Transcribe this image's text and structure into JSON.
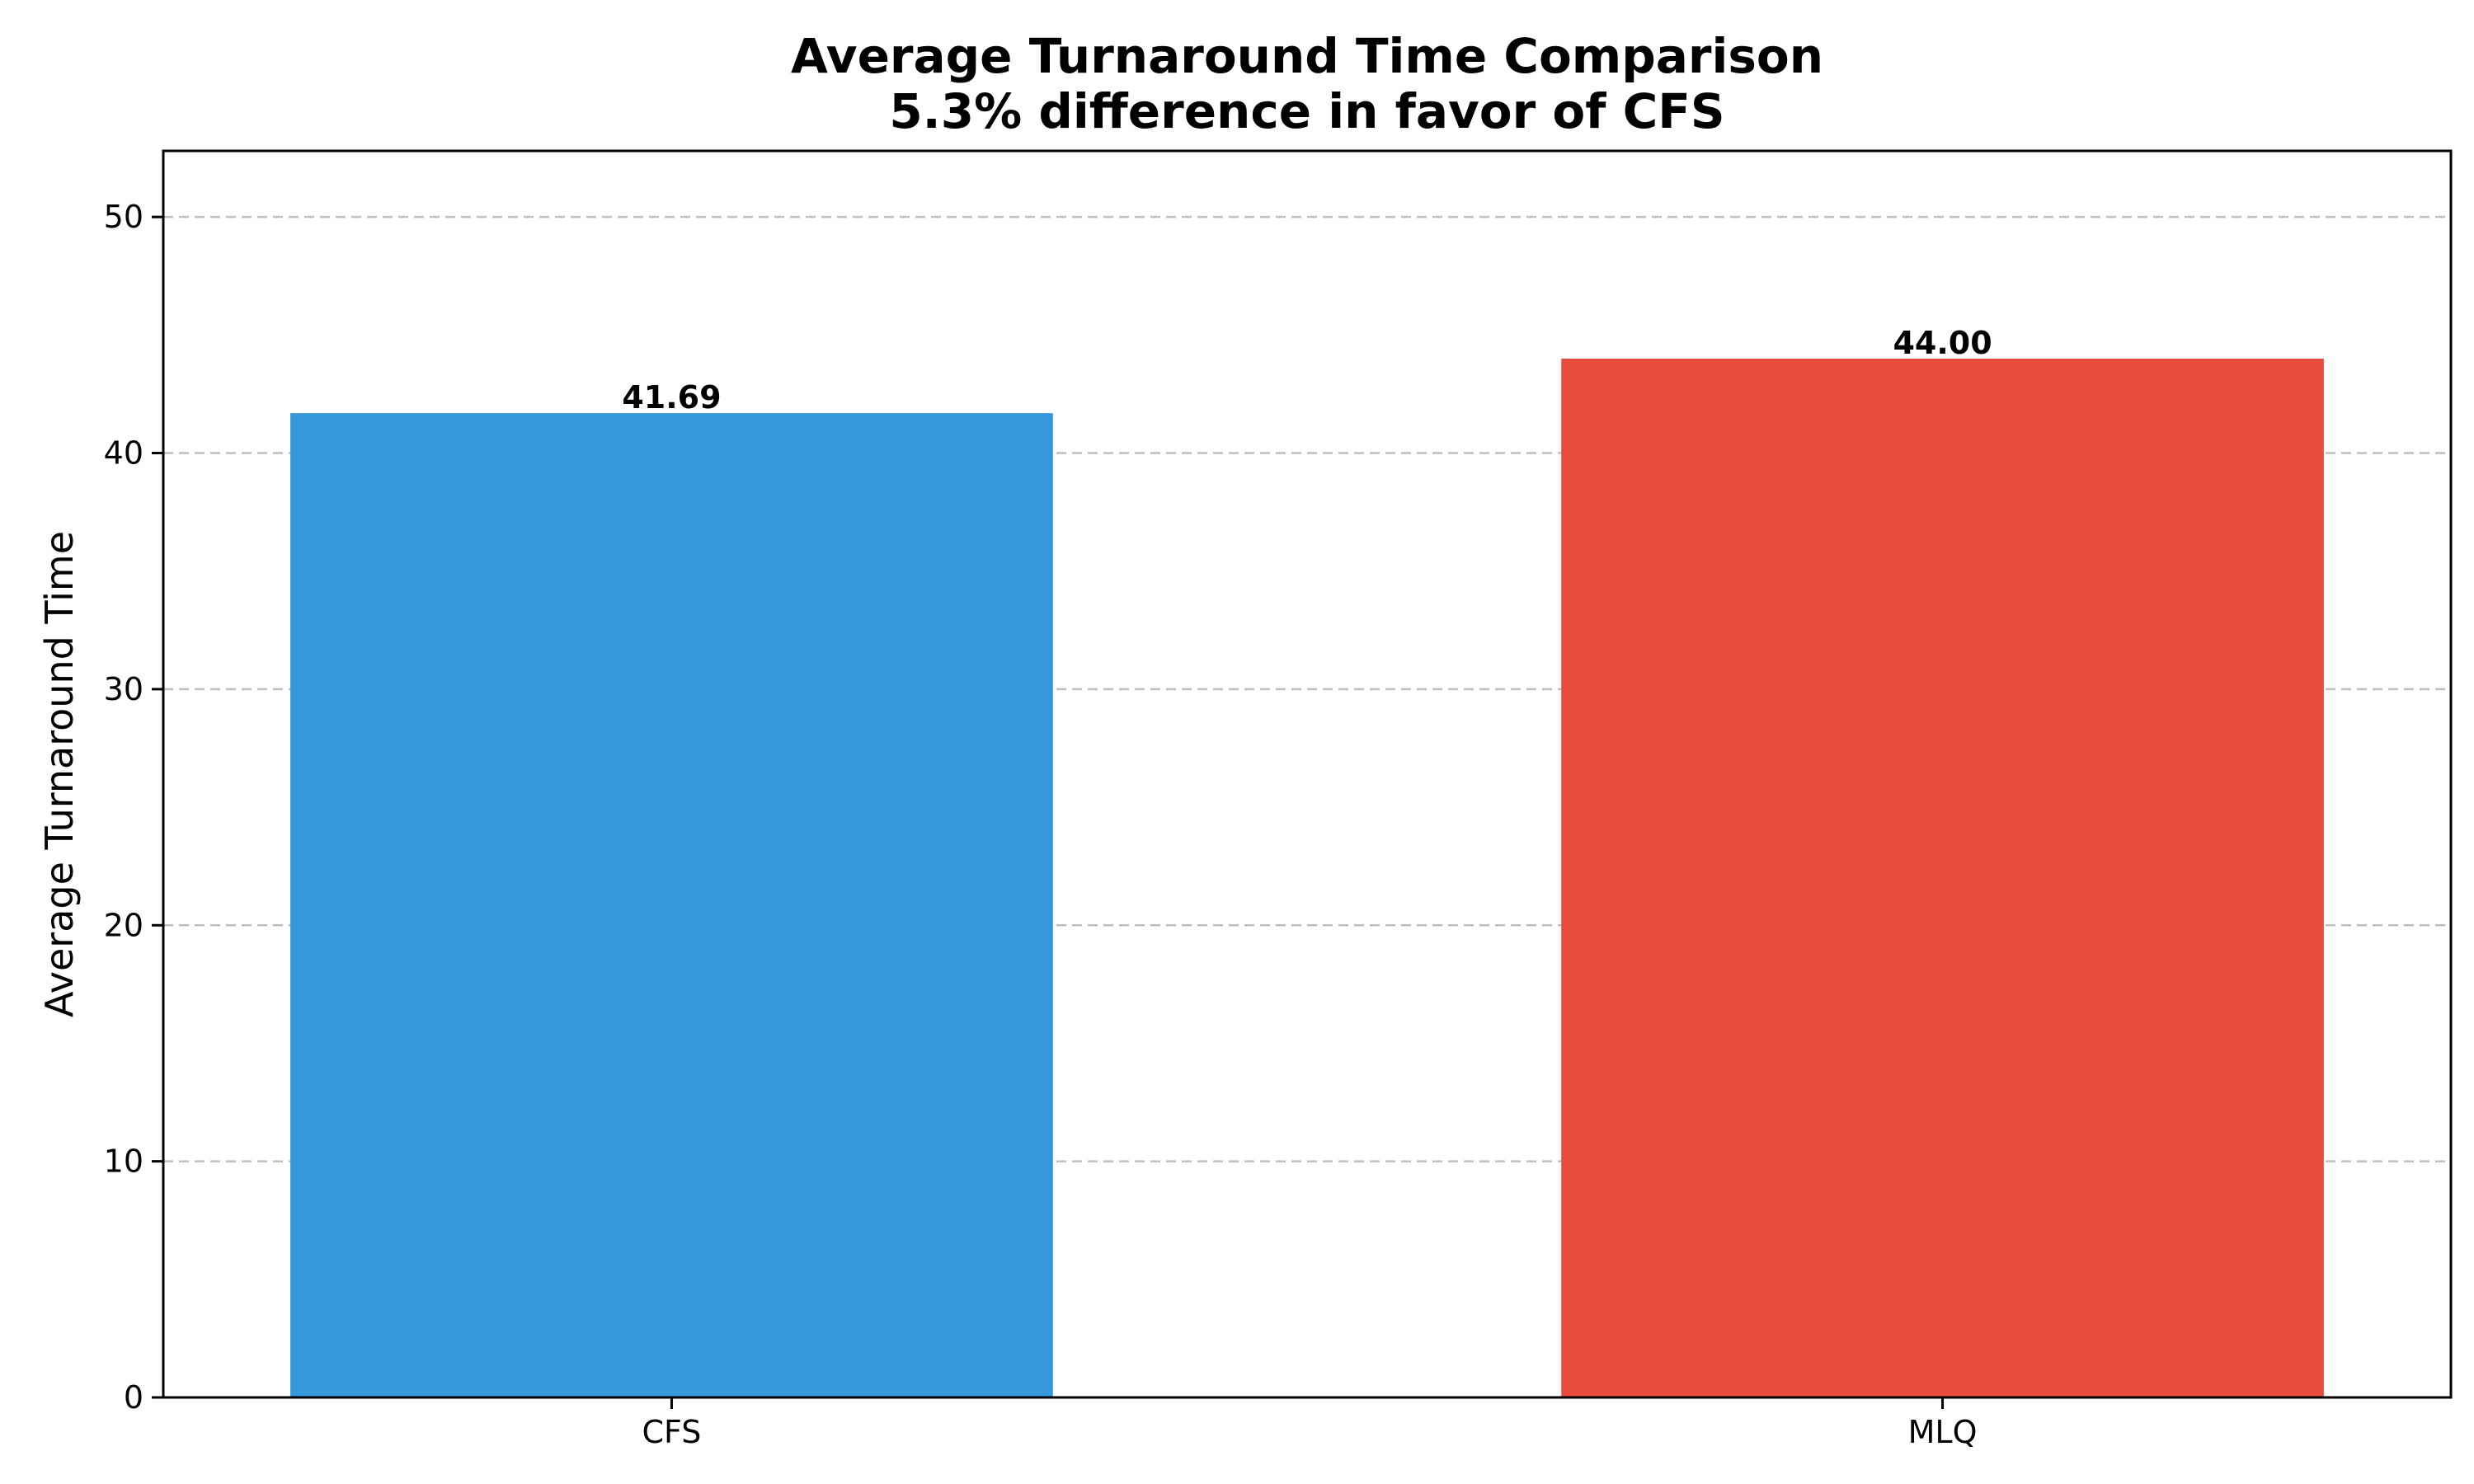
{
  "chart_data": {
    "type": "bar",
    "title": "Average Turnaround Time Comparison",
    "subtitle": "5.3% difference in favor of CFS",
    "xlabel": "",
    "ylabel": "Average Turnaround Time",
    "categories": [
      "CFS",
      "MLQ"
    ],
    "values": [
      41.69,
      44.0
    ],
    "value_labels": [
      "41.69",
      "44.00"
    ],
    "colors": [
      "#3498db",
      "#e74c3c"
    ],
    "ylim": [
      0,
      52.8
    ],
    "yticks": [
      0,
      10,
      20,
      30,
      40,
      50
    ],
    "ytick_labels": [
      "0",
      "10",
      "20",
      "30",
      "40",
      "50"
    ],
    "grid": "y-dashed",
    "legend": "none"
  }
}
